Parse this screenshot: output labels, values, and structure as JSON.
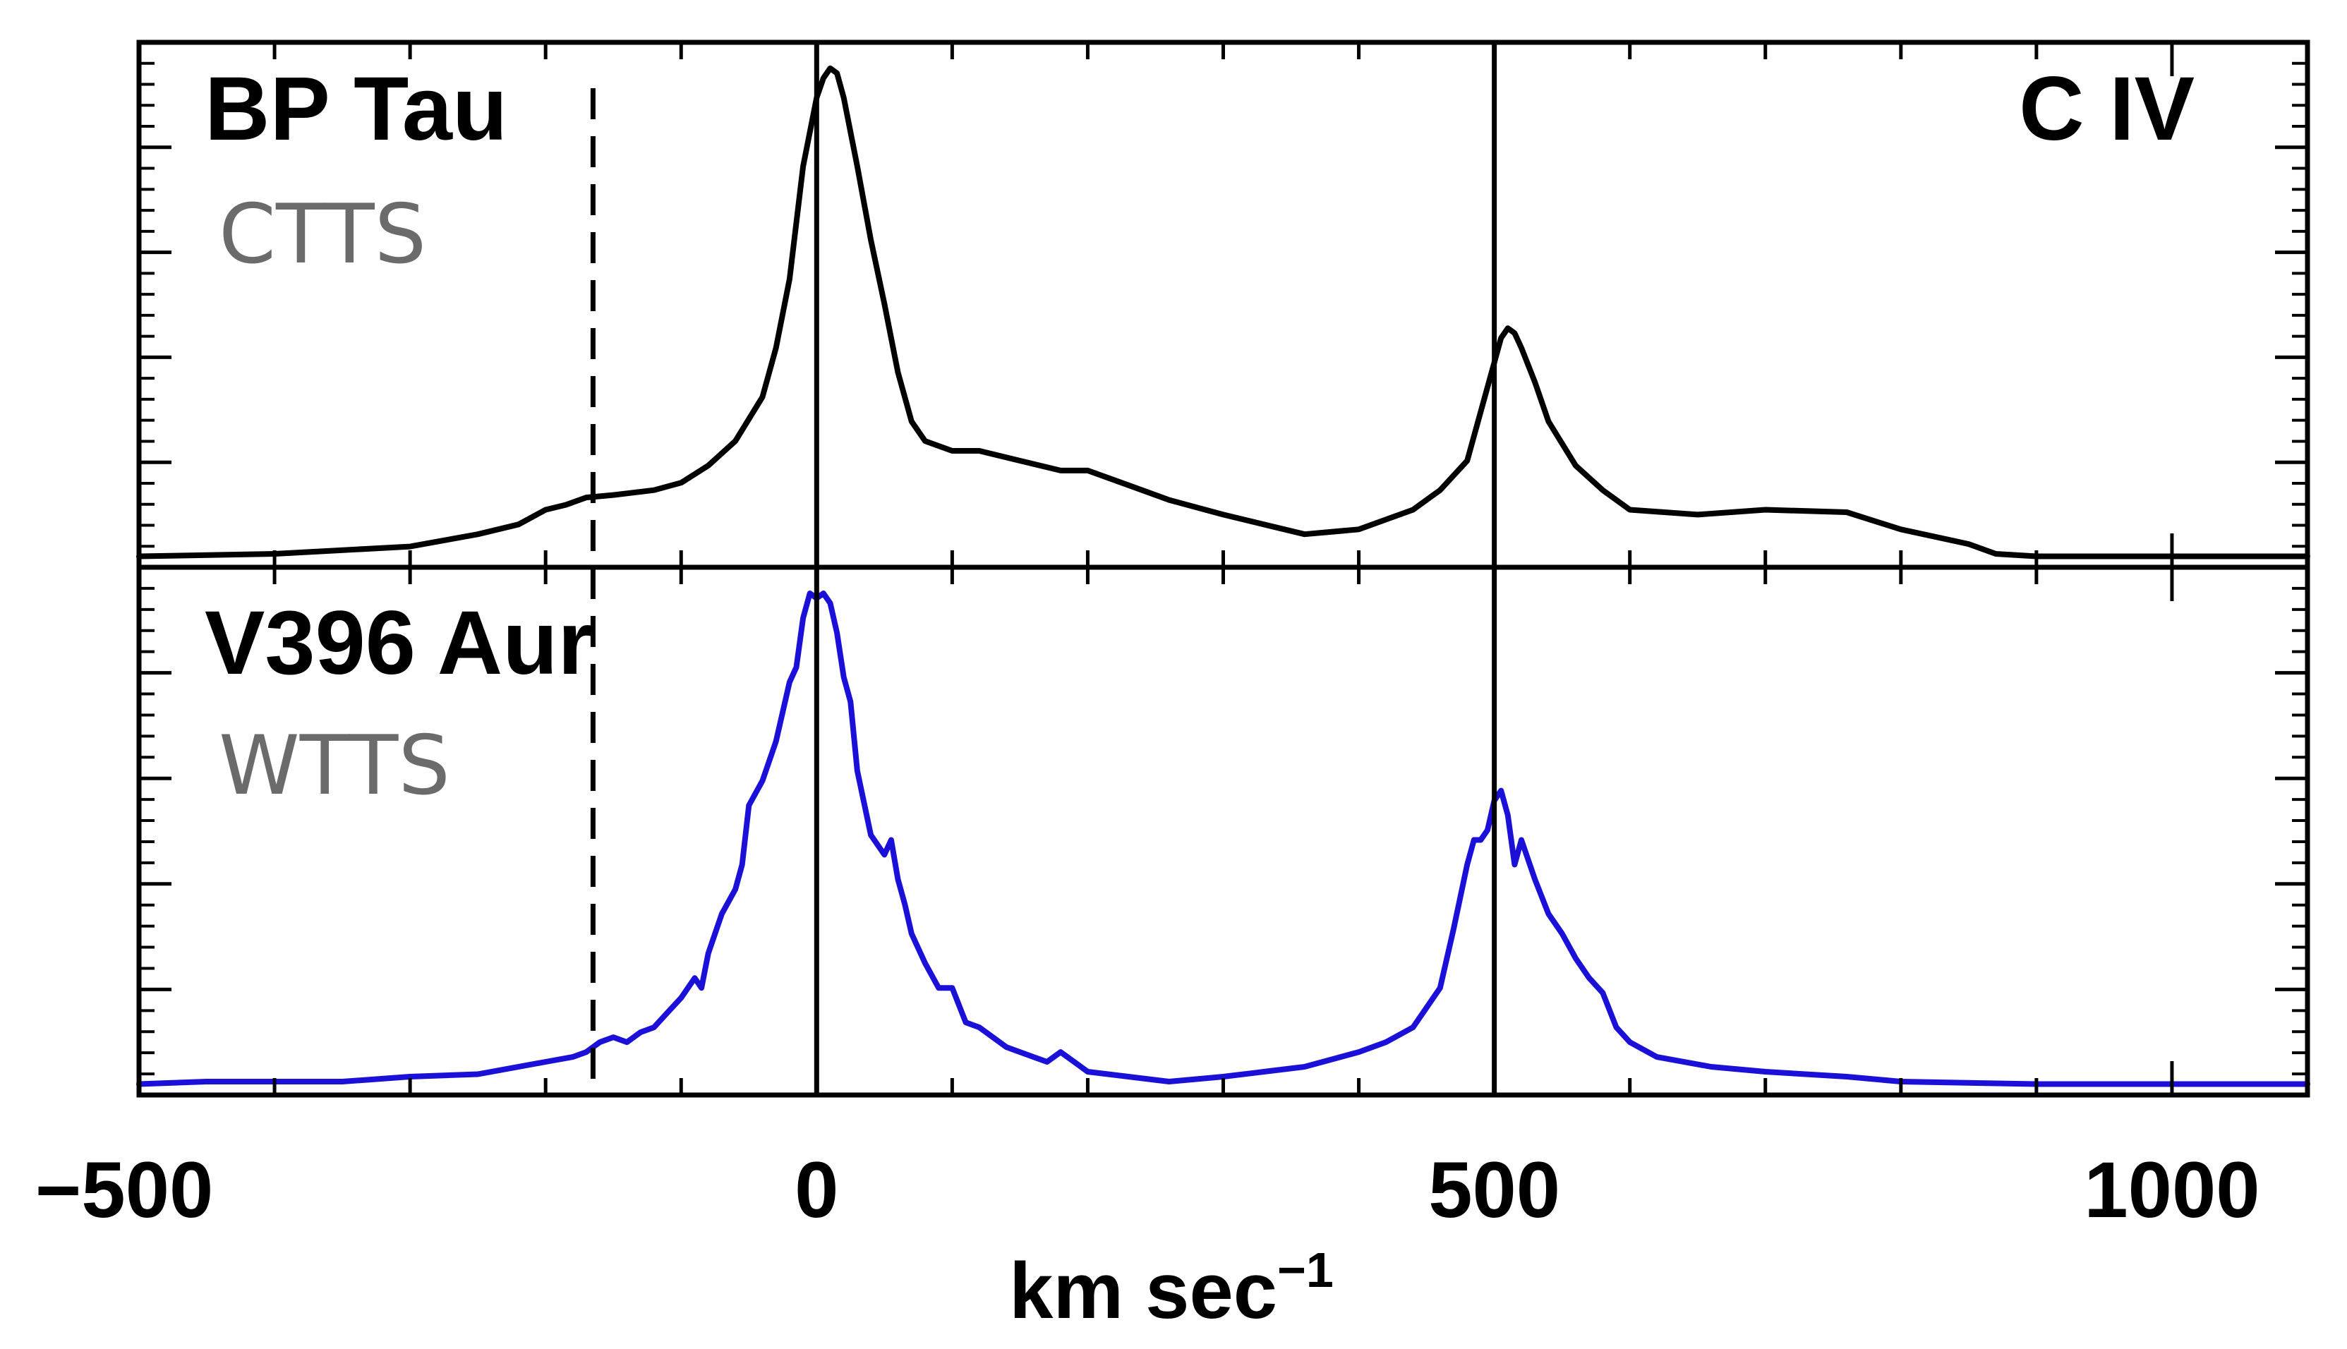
{
  "chart_data": {
    "type": "line",
    "line_label": "C IV",
    "xlabel_main": "km sec",
    "xlabel_sup": "−1",
    "xlim": [
      -500,
      1100
    ],
    "xticks": [
      {
        "value": -500,
        "label": "−500"
      },
      {
        "value": 0,
        "label": "0"
      },
      {
        "value": 500,
        "label": "500"
      },
      {
        "value": 1000,
        "label": "1000"
      }
    ],
    "vertical_lines": [
      {
        "value": 0,
        "style": "solid"
      },
      {
        "value": 500,
        "style": "solid"
      },
      {
        "value": -165,
        "style": "dashed"
      }
    ],
    "panels": [
      {
        "star": "BP Tau",
        "type_label": "CTTS",
        "color": "#000000",
        "ylim": [
          0,
          1.05
        ],
        "x": [
          -500,
          -400,
          -300,
          -250,
          -220,
          -200,
          -185,
          -170,
          -150,
          -120,
          -100,
          -80,
          -60,
          -40,
          -30,
          -20,
          -10,
          0,
          5,
          10,
          15,
          20,
          30,
          40,
          50,
          60,
          70,
          80,
          100,
          120,
          150,
          180,
          200,
          230,
          260,
          300,
          330,
          360,
          400,
          440,
          460,
          480,
          490,
          500,
          505,
          510,
          515,
          520,
          530,
          540,
          560,
          580,
          600,
          650,
          700,
          760,
          800,
          850,
          870,
          900,
          1000,
          1100
        ],
        "y": [
          0.005,
          0.01,
          0.025,
          0.05,
          0.07,
          0.1,
          0.11,
          0.125,
          0.13,
          0.14,
          0.155,
          0.19,
          0.24,
          0.33,
          0.43,
          0.57,
          0.8,
          0.94,
          0.98,
          1.0,
          0.99,
          0.94,
          0.8,
          0.65,
          0.52,
          0.38,
          0.28,
          0.24,
          0.22,
          0.22,
          0.2,
          0.18,
          0.18,
          0.15,
          0.12,
          0.09,
          0.07,
          0.05,
          0.06,
          0.1,
          0.14,
          0.2,
          0.3,
          0.4,
          0.45,
          0.47,
          0.46,
          0.43,
          0.36,
          0.28,
          0.19,
          0.14,
          0.1,
          0.09,
          0.1,
          0.095,
          0.06,
          0.03,
          0.01,
          0.005,
          0.005,
          0.005
        ]
      },
      {
        "star": "V396 Aur",
        "type_label": "WTTS",
        "color": "#1a10d8",
        "ylim": [
          0,
          1.05
        ],
        "x": [
          -500,
          -450,
          -400,
          -350,
          -300,
          -250,
          -200,
          -180,
          -170,
          -160,
          -150,
          -140,
          -130,
          -120,
          -110,
          -100,
          -90,
          -85,
          -80,
          -70,
          -60,
          -55,
          -50,
          -40,
          -30,
          -20,
          -15,
          -10,
          -5,
          0,
          5,
          10,
          15,
          20,
          25,
          30,
          40,
          50,
          55,
          60,
          65,
          70,
          80,
          90,
          100,
          110,
          120,
          130,
          140,
          150,
          160,
          170,
          180,
          190,
          200,
          230,
          260,
          300,
          330,
          360,
          400,
          420,
          440,
          460,
          470,
          480,
          485,
          490,
          495,
          500,
          505,
          510,
          515,
          520,
          530,
          540,
          550,
          560,
          570,
          580,
          590,
          600,
          620,
          660,
          700,
          760,
          800,
          900,
          1000,
          1100
        ],
        "y": [
          0.005,
          0.01,
          0.01,
          0.01,
          0.02,
          0.025,
          0.05,
          0.06,
          0.07,
          0.09,
          0.1,
          0.09,
          0.11,
          0.12,
          0.15,
          0.18,
          0.22,
          0.2,
          0.27,
          0.35,
          0.4,
          0.45,
          0.57,
          0.62,
          0.7,
          0.82,
          0.85,
          0.95,
          1.0,
          0.99,
          1.0,
          0.98,
          0.92,
          0.83,
          0.78,
          0.64,
          0.51,
          0.47,
          0.5,
          0.42,
          0.37,
          0.31,
          0.25,
          0.2,
          0.2,
          0.13,
          0.12,
          0.1,
          0.08,
          0.07,
          0.06,
          0.05,
          0.07,
          0.05,
          0.03,
          0.02,
          0.01,
          0.02,
          0.03,
          0.04,
          0.07,
          0.09,
          0.12,
          0.2,
          0.32,
          0.45,
          0.5,
          0.5,
          0.52,
          0.58,
          0.6,
          0.55,
          0.45,
          0.5,
          0.42,
          0.35,
          0.31,
          0.26,
          0.22,
          0.19,
          0.12,
          0.09,
          0.06,
          0.04,
          0.03,
          0.02,
          0.01,
          0.005,
          0.005,
          0.005
        ]
      }
    ]
  }
}
